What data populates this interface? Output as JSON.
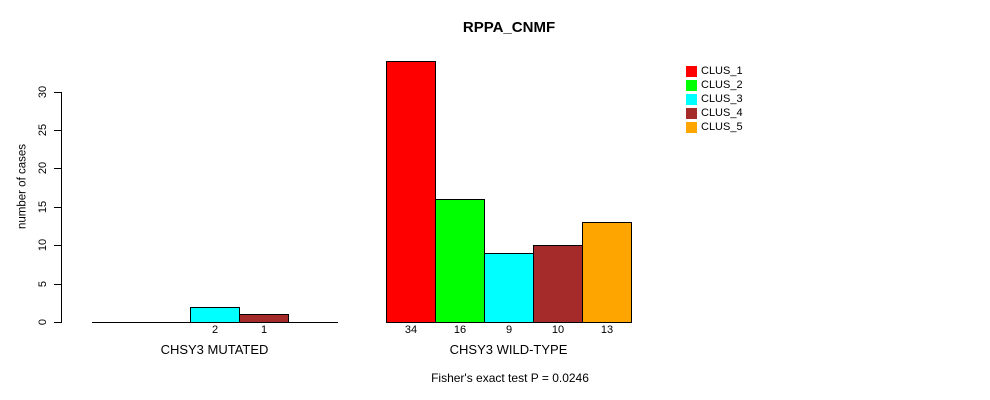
{
  "chart_data": {
    "type": "bar",
    "title": "RPPA_CNMF",
    "ylabel": "number of cases",
    "xlabel": "",
    "footer": "Fisher's exact test P = 0.0246",
    "ylim": [
      0,
      30
    ],
    "yticks": [
      0,
      5,
      10,
      15,
      20,
      25,
      30
    ],
    "grid": false,
    "legend_position": "top-right",
    "categories": [
      "CHSY3 MUTATED",
      "CHSY3 WILD-TYPE"
    ],
    "series": [
      {
        "name": "CLUS_1",
        "color": "#FF0000",
        "values": [
          0,
          34
        ]
      },
      {
        "name": "CLUS_2",
        "color": "#00FF00",
        "values": [
          0,
          16
        ]
      },
      {
        "name": "CLUS_3",
        "color": "#00FFFF",
        "values": [
          2,
          9
        ]
      },
      {
        "name": "CLUS_4",
        "color": "#A52A2A",
        "values": [
          1,
          10
        ]
      },
      {
        "name": "CLUS_5",
        "color": "#FFA500",
        "values": [
          0,
          13
        ]
      }
    ],
    "bar_value_labels_visible": [
      [
        "2",
        "1"
      ],
      [
        "34",
        "16",
        "9",
        "10",
        "13"
      ]
    ],
    "axis_color": "#000000"
  }
}
